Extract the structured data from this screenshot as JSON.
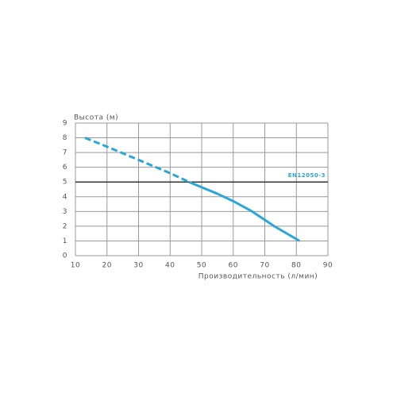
{
  "chart_data": {
    "type": "line",
    "y_label": "Высота (м)",
    "x_label": "Производительность (л/мин)",
    "xlim": [
      10,
      90
    ],
    "xticks": [
      10,
      20,
      30,
      40,
      50,
      60,
      70,
      80,
      90
    ],
    "ylim": [
      0,
      9
    ],
    "yticks": [
      0,
      1,
      2,
      3,
      4,
      5,
      6,
      7,
      8,
      9
    ],
    "grid": true,
    "reference_line": {
      "value": 5,
      "label": "EN12050-3",
      "color": "#333333",
      "label_color": "#2aa7d8"
    },
    "series": [
      {
        "color": "#2aa7d8",
        "dashed": true,
        "x": [
          13,
          20,
          30,
          40,
          46
        ],
        "values": [
          8.0,
          7.4,
          6.5,
          5.6,
          5.0
        ]
      },
      {
        "color": "#2aa7d8",
        "dashed": false,
        "x": [
          46,
          55,
          60,
          66,
          73,
          81
        ],
        "values": [
          5.0,
          4.2,
          3.7,
          3.0,
          2.0,
          1.0
        ]
      }
    ]
  }
}
